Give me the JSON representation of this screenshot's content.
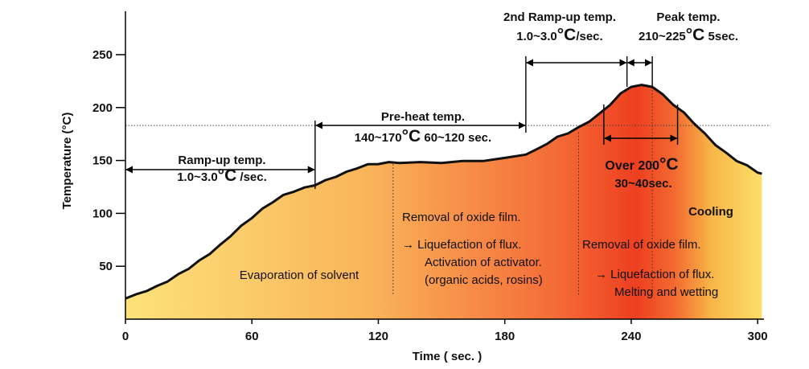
{
  "chart_data": {
    "type": "area",
    "title": "",
    "xlabel": "Time ( sec. )",
    "ylabel": "Temperature (°C)",
    "xlim": [
      0,
      303
    ],
    "ylim": [
      0,
      290
    ],
    "x_ticks": [
      0,
      60,
      120,
      180,
      240,
      300
    ],
    "y_ticks": [
      50,
      100,
      150,
      200,
      250
    ],
    "reference_line_y": 183,
    "series": [
      {
        "points": [
          [
            0,
            20
          ],
          [
            5,
            23
          ],
          [
            10,
            27
          ],
          [
            15,
            31
          ],
          [
            20,
            36
          ],
          [
            25,
            42
          ],
          [
            30,
            48
          ],
          [
            35,
            55
          ],
          [
            40,
            62
          ],
          [
            45,
            70
          ],
          [
            50,
            79
          ],
          [
            55,
            88
          ],
          [
            60,
            96
          ],
          [
            65,
            104
          ],
          [
            70,
            111
          ],
          [
            75,
            117
          ],
          [
            80,
            121
          ],
          [
            85,
            124
          ],
          [
            90,
            127
          ],
          [
            95,
            131
          ],
          [
            100,
            135
          ],
          [
            105,
            139
          ],
          [
            110,
            143
          ],
          [
            115,
            146
          ],
          [
            120,
            147
          ],
          [
            125,
            148
          ],
          [
            130,
            148
          ],
          [
            140,
            148
          ],
          [
            150,
            148
          ],
          [
            160,
            149
          ],
          [
            170,
            150
          ],
          [
            180,
            152
          ],
          [
            190,
            156
          ],
          [
            195,
            160
          ],
          [
            200,
            166
          ],
          [
            205,
            172
          ],
          [
            210,
            176
          ],
          [
            215,
            181
          ],
          [
            220,
            187
          ],
          [
            225,
            194
          ],
          [
            230,
            203
          ],
          [
            235,
            213
          ],
          [
            240,
            220
          ],
          [
            245,
            221
          ],
          [
            250,
            220
          ],
          [
            255,
            212
          ],
          [
            260,
            203
          ],
          [
            265,
            195
          ],
          [
            270,
            185
          ],
          [
            275,
            175
          ],
          [
            280,
            165
          ],
          [
            285,
            157
          ],
          [
            290,
            150
          ],
          [
            295,
            145
          ],
          [
            300,
            139
          ],
          [
            302,
            137
          ]
        ]
      }
    ],
    "annotations": {
      "ramp_up": {
        "line1": "Ramp-up temp.",
        "line2a": "1.0~3.0",
        "unit": "°C",
        "line2b": " /sec."
      },
      "preheat": {
        "line1": "Pre-heat temp.",
        "line2a": "140~170",
        "unit": "°C",
        "line2b": " 60~120 sec."
      },
      "ramp2": {
        "line1": "2nd Ramp-up temp.",
        "line2a": "1.0~3.0",
        "unit": "°C",
        "line2b": "/sec."
      },
      "peak": {
        "line1": "Peak temp.",
        "line2a": "210~225",
        "unit": "°C",
        "line2b": " 5sec."
      },
      "over200": {
        "line1a": "Over 200",
        "unit": "°C",
        "line2": "30~40sec."
      },
      "cooling": "Cooling",
      "solvent": "Evaporation of solvent",
      "zone1": [
        "Removal of oxide film.",
        "→  Liquefaction of flux.",
        "Activation of activator.",
        "(organic acids, rosins)"
      ],
      "zone2": [
        "Removal of oxide film.",
        "→ Liquefaction of flux.",
        "Melting and wetting"
      ]
    },
    "colors": {
      "gradient": [
        "#FCE27A",
        "#F9B45A",
        "#F46A36",
        "#EE3F20",
        "#F26A30",
        "#F8B848",
        "#FCE06A"
      ],
      "curve": "#111111"
    }
  }
}
